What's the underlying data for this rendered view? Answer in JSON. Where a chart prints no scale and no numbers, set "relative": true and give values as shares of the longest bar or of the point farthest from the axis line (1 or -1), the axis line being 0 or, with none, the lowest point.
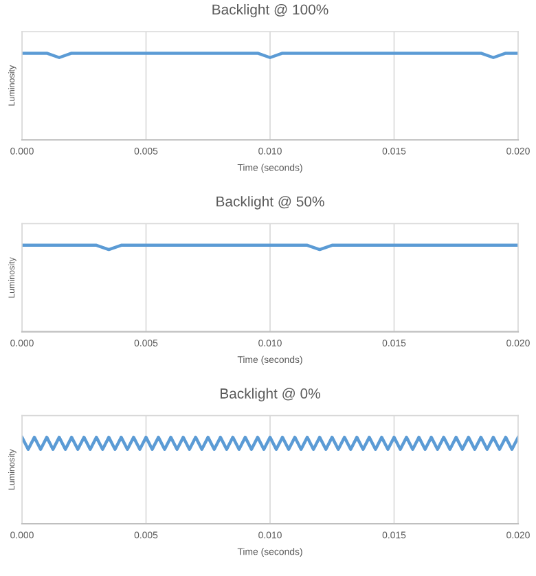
{
  "chart_data": [
    {
      "type": "line",
      "title": "Backlight @ 100%",
      "xlabel": "Time (seconds)",
      "ylabel": "Luminosity",
      "relative": true,
      "grid": "x",
      "legend": false,
      "marker": "none",
      "line_style": "solid",
      "tick_labels": "x",
      "xlim": [
        0,
        0.02
      ],
      "xticks": [
        {
          "value": 0,
          "label": "0.000"
        },
        {
          "value": 0.005,
          "label": "0.005"
        },
        {
          "value": 0.01,
          "label": "0.010"
        },
        {
          "value": 0.015,
          "label": "0.015"
        },
        {
          "value": 0.02,
          "label": "0.020"
        }
      ],
      "x": [
        0,
        0.0005,
        0.001,
        0.0015,
        0.002,
        0.0025,
        0.003,
        0.0035,
        0.004,
        0.0045,
        0.005,
        0.0055,
        0.006,
        0.0065,
        0.007,
        0.0075,
        0.008,
        0.0085,
        0.009,
        0.0095,
        0.01,
        0.0105,
        0.011,
        0.0115,
        0.012,
        0.0125,
        0.013,
        0.0135,
        0.014,
        0.0145,
        0.015,
        0.0155,
        0.016,
        0.0165,
        0.017,
        0.0175,
        0.018,
        0.0185,
        0.019,
        0.0195,
        0.02
      ],
      "series": [
        {
          "color": "#5b9bd5",
          "values": [
            1,
            1,
            1,
            0.95,
            1,
            1,
            1,
            1,
            1,
            1,
            1,
            1,
            1,
            1,
            1,
            1,
            1,
            1,
            1,
            1,
            0.95,
            1,
            1,
            1,
            1,
            1,
            1,
            1,
            1,
            1,
            1,
            1,
            1,
            1,
            1,
            1,
            1,
            1,
            0.95,
            1,
            1
          ]
        }
      ]
    },
    {
      "type": "line",
      "title": "Backlight @ 50%",
      "xlabel": "Time (seconds)",
      "ylabel": "Luminosity",
      "relative": true,
      "grid": "x",
      "legend": false,
      "marker": "none",
      "line_style": "solid",
      "tick_labels": "x",
      "xlim": [
        0,
        0.02
      ],
      "xticks": [
        {
          "value": 0,
          "label": "0.000"
        },
        {
          "value": 0.005,
          "label": "0.005"
        },
        {
          "value": 0.01,
          "label": "0.010"
        },
        {
          "value": 0.015,
          "label": "0.015"
        },
        {
          "value": 0.02,
          "label": "0.020"
        }
      ],
      "x": [
        0,
        0.0005,
        0.001,
        0.0015,
        0.002,
        0.0025,
        0.003,
        0.0035,
        0.004,
        0.0045,
        0.005,
        0.0055,
        0.006,
        0.0065,
        0.007,
        0.0075,
        0.008,
        0.0085,
        0.009,
        0.0095,
        0.01,
        0.0105,
        0.011,
        0.0115,
        0.012,
        0.0125,
        0.013,
        0.0135,
        0.014,
        0.0145,
        0.015,
        0.0155,
        0.016,
        0.0165,
        0.017,
        0.0175,
        0.018,
        0.0185,
        0.019,
        0.0195,
        0.02
      ],
      "series": [
        {
          "color": "#5b9bd5",
          "values": [
            1,
            1,
            1,
            1,
            1,
            1,
            1,
            0.95,
            1,
            1,
            1,
            1,
            1,
            1,
            1,
            1,
            1,
            1,
            1,
            1,
            1,
            1,
            1,
            1,
            0.95,
            1,
            1,
            1,
            1,
            1,
            1,
            1,
            1,
            1,
            1,
            1,
            1,
            1,
            1,
            1,
            1
          ]
        }
      ]
    },
    {
      "type": "line",
      "title": "Backlight @ 0%",
      "xlabel": "Time (seconds)",
      "ylabel": "Luminosity",
      "relative": true,
      "grid": "x",
      "legend": false,
      "marker": "none",
      "line_style": "solid",
      "tick_labels": "x",
      "xlim": [
        0,
        0.02
      ],
      "xticks": [
        {
          "value": 0,
          "label": "0.000"
        },
        {
          "value": 0.005,
          "label": "0.005"
        },
        {
          "value": 0.01,
          "label": "0.010"
        },
        {
          "value": 0.015,
          "label": "0.015"
        },
        {
          "value": 0.02,
          "label": "0.020"
        }
      ],
      "x": [
        0,
        0.00025,
        0.0005,
        0.00075,
        0.001,
        0.00125,
        0.0015,
        0.00175,
        0.002,
        0.00225,
        0.0025,
        0.00275,
        0.003,
        0.00325,
        0.0035,
        0.00375,
        0.004,
        0.00425,
        0.0045,
        0.00475,
        0.005,
        0.00525,
        0.0055,
        0.00575,
        0.006,
        0.00625,
        0.0065,
        0.00675,
        0.007,
        0.00725,
        0.0075,
        0.00775,
        0.008,
        0.00825,
        0.0085,
        0.00875,
        0.009,
        0.00925,
        0.0095,
        0.00975,
        0.01,
        0.01025,
        0.0105,
        0.01075,
        0.011,
        0.01125,
        0.0115,
        0.01175,
        0.012,
        0.01225,
        0.0125,
        0.01275,
        0.013,
        0.01325,
        0.0135,
        0.01375,
        0.014,
        0.01425,
        0.0145,
        0.01475,
        0.015,
        0.01525,
        0.0155,
        0.01575,
        0.016,
        0.01625,
        0.0165,
        0.01675,
        0.017,
        0.01725,
        0.0175,
        0.01775,
        0.018,
        0.01825,
        0.0185,
        0.01875,
        0.019,
        0.01925,
        0.0195,
        0.01975,
        0.02
      ],
      "series": [
        {
          "color": "#5b9bd5",
          "values": [
            1,
            0.86,
            1,
            0.86,
            1,
            0.86,
            1,
            0.86,
            1,
            0.86,
            1,
            0.86,
            1,
            0.86,
            1,
            0.86,
            1,
            0.86,
            1,
            0.86,
            1,
            0.86,
            1,
            0.86,
            1,
            0.86,
            1,
            0.86,
            1,
            0.86,
            1,
            0.86,
            1,
            0.86,
            1,
            0.86,
            1,
            0.86,
            1,
            0.86,
            1,
            0.86,
            1,
            0.86,
            1,
            0.86,
            1,
            0.86,
            1,
            0.86,
            1,
            0.86,
            1,
            0.86,
            1,
            0.86,
            1,
            0.86,
            1,
            0.86,
            1,
            0.86,
            1,
            0.86,
            1,
            0.86,
            1,
            0.86,
            1,
            0.86,
            1,
            0.86,
            1,
            0.86,
            1,
            0.86,
            1,
            0.86,
            1,
            0.86,
            1
          ]
        }
      ]
    }
  ]
}
